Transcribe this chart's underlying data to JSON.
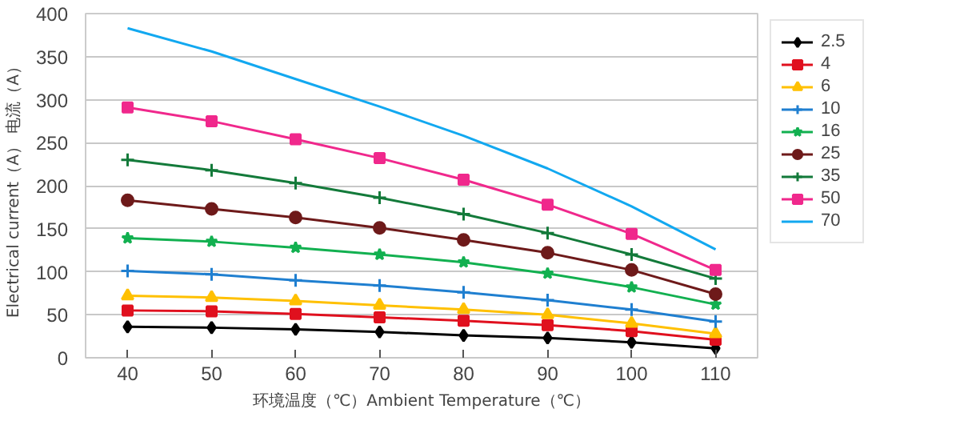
{
  "chart_data": {
    "type": "line",
    "xlabel": "环境温度（℃）Ambient Temperature（℃）",
    "ylabel": "Electrical current（A）  电流（A）",
    "categories": [
      "40",
      "50",
      "60",
      "70",
      "80",
      "90",
      "100",
      "110"
    ],
    "ylim": [
      0,
      400
    ],
    "yticks": [
      0,
      50,
      100,
      150,
      200,
      250,
      300,
      350,
      400
    ],
    "grid": "y",
    "legend": "right",
    "line_style": "solid",
    "series": [
      {
        "name": "2.5",
        "color": "#000000",
        "marker": "diamond",
        "values": [
          36,
          35,
          33,
          30,
          26,
          23,
          18,
          11
        ]
      },
      {
        "name": "4",
        "color": "#e0101e",
        "marker": "square",
        "values": [
          55,
          54,
          51,
          47,
          43,
          38,
          31,
          21
        ]
      },
      {
        "name": "6",
        "color": "#ffc000",
        "marker": "triangle",
        "values": [
          72,
          70,
          66,
          61,
          56,
          50,
          40,
          28
        ]
      },
      {
        "name": "10",
        "color": "#1f7fd0",
        "marker": "cross",
        "values": [
          101,
          97,
          90,
          84,
          76,
          67,
          56,
          42
        ]
      },
      {
        "name": "16",
        "color": "#12b050",
        "marker": "star",
        "values": [
          139,
          135,
          128,
          120,
          111,
          98,
          82,
          62
        ]
      },
      {
        "name": "25",
        "color": "#6e1a1a",
        "marker": "circle",
        "values": [
          183,
          173,
          163,
          151,
          137,
          122,
          102,
          74
        ]
      },
      {
        "name": "35",
        "color": "#137a3a",
        "marker": "cross",
        "values": [
          230,
          218,
          203,
          186,
          167,
          145,
          120,
          92
        ]
      },
      {
        "name": "50",
        "color": "#f0288c",
        "marker": "square",
        "values": [
          291,
          275,
          254,
          232,
          207,
          178,
          144,
          102
        ]
      },
      {
        "name": "70",
        "color": "#12a8f0",
        "marker": "none",
        "values": [
          383,
          356,
          324,
          292,
          258,
          220,
          176,
          126
        ]
      }
    ]
  }
}
